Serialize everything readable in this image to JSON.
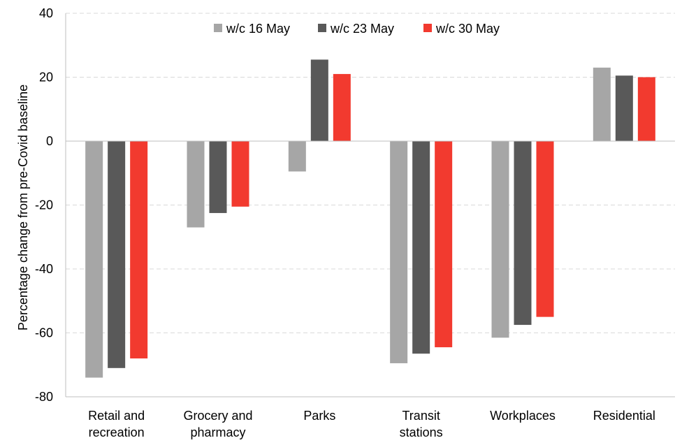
{
  "chart_data": {
    "type": "bar",
    "categories": [
      [
        "Retail and",
        "recreation"
      ],
      [
        "Grocery and",
        "pharmacy"
      ],
      [
        "Parks"
      ],
      [
        "Transit",
        "stations"
      ],
      [
        "Workplaces"
      ],
      [
        "Residential"
      ]
    ],
    "series": [
      {
        "name": "w/c 16 May",
        "color": "#a6a6a6",
        "values": [
          -74,
          -27,
          -9.5,
          -69.5,
          -61.5,
          23
        ]
      },
      {
        "name": "w/c 23 May",
        "color": "#595959",
        "values": [
          -71,
          -22.5,
          25.5,
          -66.5,
          -57.5,
          20.5
        ]
      },
      {
        "name": "w/c 30 May",
        "color": "#f23a2f",
        "values": [
          -68,
          -20.5,
          21,
          -64.5,
          -55,
          20
        ]
      }
    ],
    "ylabel": "Percentage change from pre-Covid baseline",
    "xlabel": "",
    "ylim": [
      -80,
      40
    ],
    "yticks": [
      40,
      20,
      0,
      -20,
      -40,
      -60,
      -80
    ],
    "grid": true,
    "legend_position": "top"
  }
}
